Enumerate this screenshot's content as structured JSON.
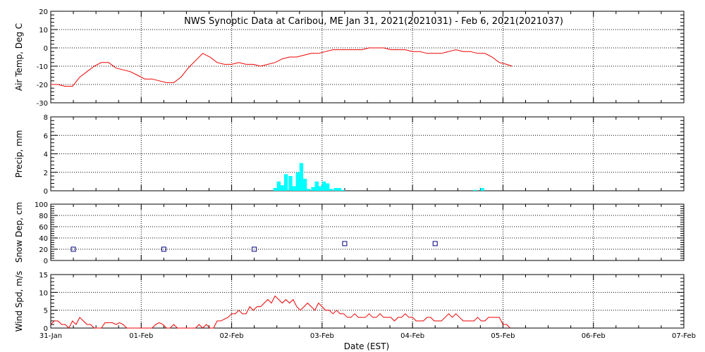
{
  "title": "NWS Synoptic Data at Caribou, ME   Jan 31, 2021(2021031) - Feb  6, 2021(2021037)",
  "xlabel": "Date (EST)",
  "x_ticks": [
    "31-Jan",
    "01-Feb",
    "02-Feb",
    "03-Feb",
    "04-Feb",
    "05-Feb",
    "06-Feb",
    "07-Feb"
  ],
  "colors": {
    "line": "#ee0000",
    "bar": "#00ffff",
    "marker": "#000080",
    "axes": "#000000"
  },
  "chart_data": [
    {
      "type": "line",
      "ylabel": "Air Temp, Deg C",
      "ylim": [
        -30,
        20
      ],
      "yticks": [
        20,
        10,
        0,
        -10,
        -20,
        -30
      ],
      "grid": true,
      "x_unit": "days since 31-Jan 00:00",
      "series": [
        {
          "x": [
            0,
            0.08,
            0.16,
            0.24,
            0.32,
            0.4,
            0.48,
            0.56,
            0.64,
            0.72,
            0.8,
            0.88,
            0.96,
            1.04,
            1.12,
            1.2,
            1.28,
            1.36,
            1.44,
            1.52,
            1.6,
            1.68,
            1.76,
            1.84,
            1.92,
            2.0,
            2.08,
            2.16,
            2.24,
            2.32,
            2.4,
            2.48,
            2.56,
            2.64,
            2.72,
            2.8,
            2.88,
            2.96,
            3.04,
            3.12,
            3.2,
            3.28,
            3.36,
            3.44,
            3.52,
            3.6,
            3.68,
            3.76,
            3.84,
            3.92,
            4.0,
            4.08,
            4.16,
            4.24,
            4.32,
            4.4,
            4.48,
            4.56,
            4.64,
            4.72,
            4.8,
            4.88,
            4.96,
            5.04,
            5.1
          ],
          "values": [
            -20,
            -20,
            -21,
            -21,
            -16,
            -13,
            -10,
            -8,
            -8,
            -11,
            -12,
            -13,
            -15,
            -17,
            -17,
            -18,
            -19,
            -19,
            -16,
            -11,
            -7,
            -3,
            -5,
            -8,
            -9,
            -9,
            -8,
            -9,
            -9,
            -10,
            -9,
            -8,
            -6,
            -5,
            -5,
            -4,
            -3,
            -3,
            -2,
            -1,
            -1,
            -1,
            -1,
            -1,
            0,
            0,
            0,
            -1,
            -1,
            -1,
            -2,
            -2,
            -3,
            -3,
            -3,
            -2,
            -1,
            -2,
            -2,
            -3,
            -3,
            -5,
            -8,
            -9,
            -10
          ]
        }
      ]
    },
    {
      "type": "bar",
      "ylabel": "Precip, mm",
      "ylim": [
        0,
        8
      ],
      "yticks": [
        8,
        6,
        4,
        2,
        0
      ],
      "grid": true,
      "x_unit": "days since 31-Jan 00:00",
      "bar_width_days": 0.0417,
      "x": [
        2.46,
        2.5,
        2.54,
        2.58,
        2.63,
        2.67,
        2.71,
        2.75,
        2.79,
        2.83,
        2.88,
        2.92,
        2.96,
        3.0,
        3.04,
        3.08,
        3.13,
        3.17,
        3.21,
        4.67,
        4.75
      ],
      "values": [
        0.3,
        1.0,
        0.6,
        1.8,
        1.6,
        0.5,
        2.0,
        3.0,
        1.3,
        0.2,
        0.4,
        1.0,
        0.5,
        1.0,
        0.8,
        0.2,
        0.3,
        0.3,
        0.1,
        0.1,
        0.3
      ]
    },
    {
      "type": "scatter",
      "ylabel": "Snow Dep, cm",
      "ylim": [
        0,
        100
      ],
      "yticks": [
        100,
        80,
        60,
        40,
        20,
        0
      ],
      "grid": true,
      "x_unit": "days since 31-Jan 00:00",
      "x": [
        0.25,
        1.25,
        2.25,
        3.25,
        4.25
      ],
      "values": [
        20,
        20,
        20,
        30,
        30
      ]
    },
    {
      "type": "line",
      "ylabel": "Wind Spd, m/s",
      "ylim": [
        0,
        15
      ],
      "yticks": [
        15,
        10,
        5,
        0
      ],
      "grid": true,
      "x_unit": "days since 31-Jan 00:00",
      "series": [
        {
          "x": [
            0,
            0.04,
            0.08,
            0.12,
            0.16,
            0.2,
            0.24,
            0.28,
            0.32,
            0.36,
            0.4,
            0.44,
            0.48,
            0.52,
            0.56,
            0.6,
            0.64,
            0.68,
            0.72,
            0.76,
            0.8,
            0.84,
            0.88,
            0.92,
            0.96,
            1.0,
            1.04,
            1.08,
            1.12,
            1.16,
            1.2,
            1.24,
            1.28,
            1.32,
            1.36,
            1.4,
            1.44,
            1.48,
            1.52,
            1.56,
            1.6,
            1.64,
            1.68,
            1.72,
            1.76,
            1.8,
            1.84,
            1.88,
            1.92,
            1.96,
            2.0,
            2.04,
            2.08,
            2.12,
            2.16,
            2.2,
            2.24,
            2.28,
            2.32,
            2.36,
            2.4,
            2.44,
            2.48,
            2.52,
            2.56,
            2.6,
            2.64,
            2.68,
            2.72,
            2.76,
            2.8,
            2.84,
            2.88,
            2.92,
            2.96,
            3.0,
            3.04,
            3.08,
            3.12,
            3.16,
            3.2,
            3.24,
            3.28,
            3.32,
            3.36,
            3.4,
            3.44,
            3.48,
            3.52,
            3.56,
            3.6,
            3.64,
            3.68,
            3.72,
            3.76,
            3.8,
            3.84,
            3.88,
            3.92,
            3.96,
            4.0,
            4.04,
            4.08,
            4.12,
            4.16,
            4.2,
            4.24,
            4.28,
            4.32,
            4.36,
            4.4,
            4.44,
            4.48,
            4.52,
            4.56,
            4.6,
            4.64,
            4.68,
            4.72,
            4.76,
            4.8,
            4.84,
            4.88,
            4.92,
            4.96,
            5.0,
            5.04,
            5.08
          ],
          "values": [
            1,
            2,
            2,
            1,
            1,
            0,
            2,
            1,
            3,
            2,
            1,
            1,
            0,
            0,
            0,
            1.5,
            1.5,
            1.5,
            1,
            1.5,
            1,
            0,
            0,
            0,
            0,
            0,
            0,
            0,
            0,
            1,
            1.5,
            1,
            0,
            0,
            1,
            0,
            0,
            0,
            0,
            0,
            0,
            1,
            0,
            1,
            0,
            0,
            2,
            2,
            2.5,
            3,
            4,
            4,
            5,
            4,
            4,
            6,
            5,
            6,
            6,
            7,
            8,
            7,
            9,
            8,
            7,
            8,
            7,
            8,
            6,
            5,
            6,
            7,
            6,
            5,
            7,
            6,
            5,
            5,
            4,
            5,
            4,
            4,
            3,
            3,
            4,
            3,
            3,
            3,
            4,
            3,
            3,
            4,
            3,
            3,
            3,
            2,
            3,
            3,
            4,
            3,
            3,
            2,
            2,
            2,
            3,
            3,
            2,
            2,
            2,
            3,
            4,
            3,
            4,
            3,
            2,
            2,
            2,
            2,
            3,
            2,
            2,
            3,
            3,
            3,
            3,
            1,
            1,
            0
          ]
        }
      ]
    }
  ]
}
